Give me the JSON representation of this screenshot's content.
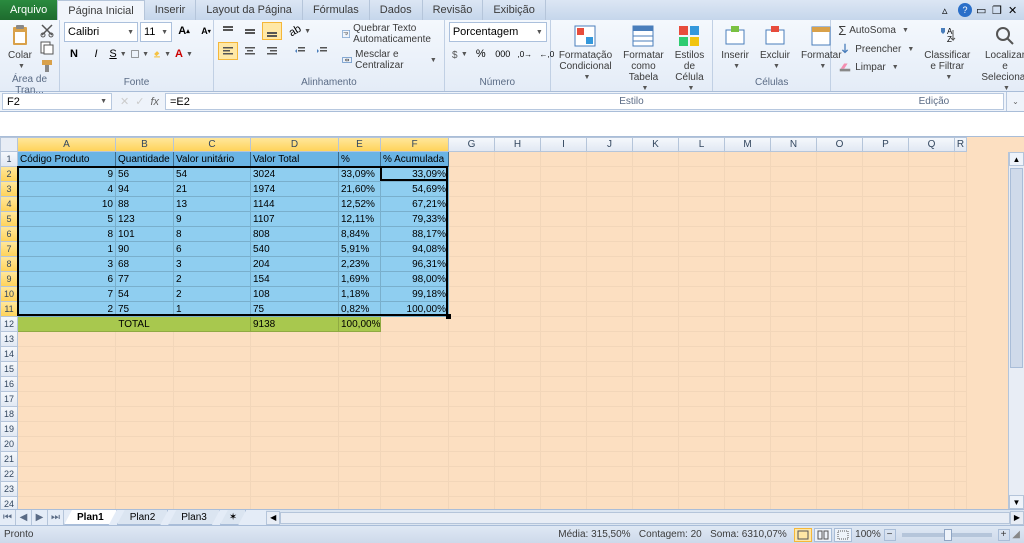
{
  "tabs": {
    "file": "Arquivo",
    "home": "Página Inicial",
    "insert": "Inserir",
    "layout": "Layout da Página",
    "formulas": "Fórmulas",
    "data": "Dados",
    "review": "Revisão",
    "view": "Exibição"
  },
  "ribbon": {
    "clipboard": {
      "paste": "Colar",
      "group": "Área de Tran..."
    },
    "font": {
      "name": "Calibri",
      "size": "11",
      "group": "Fonte"
    },
    "alignment": {
      "wrap": "Quebrar Texto Automaticamente",
      "merge": "Mesclar e Centralizar",
      "group": "Alinhamento"
    },
    "number": {
      "format": "Porcentagem",
      "group": "Número"
    },
    "styles": {
      "conditional": "Formatação Condicional",
      "table": "Formatar como Tabela",
      "cell": "Estilos de Célula",
      "group": "Estilo"
    },
    "cells": {
      "insert": "Inserir",
      "delete": "Excluir",
      "format": "Formatar",
      "group": "Células"
    },
    "editing": {
      "sum": "AutoSoma",
      "fill": "Preencher",
      "clear": "Limpar",
      "sort": "Classificar e Filtrar",
      "find": "Localizar e Selecionar",
      "group": "Edição"
    }
  },
  "namebox": "F2",
  "formula": "=E2",
  "columns": {
    "widths": [
      98,
      58,
      77,
      88,
      42,
      68,
      46,
      46,
      46,
      46,
      46,
      46,
      46,
      46,
      46,
      46,
      46,
      12
    ],
    "labels": [
      "A",
      "B",
      "C",
      "D",
      "E",
      "F",
      "G",
      "H",
      "I",
      "J",
      "K",
      "L",
      "M",
      "N",
      "O",
      "P",
      "Q",
      "R"
    ],
    "selected": [
      0,
      1,
      2,
      3,
      4,
      5
    ]
  },
  "headers": [
    "Código Produto",
    "Quantidade",
    "Valor unitário",
    "Valor Total",
    "%",
    "% Acumulada"
  ],
  "data_rows": [
    [
      "9",
      "56",
      "54",
      "3024",
      "33,09%",
      "33,09%"
    ],
    [
      "4",
      "94",
      "21",
      "1974",
      "21,60%",
      "54,69%"
    ],
    [
      "10",
      "88",
      "13",
      "1144",
      "12,52%",
      "67,21%"
    ],
    [
      "5",
      "123",
      "9",
      "1107",
      "12,11%",
      "79,33%"
    ],
    [
      "8",
      "101",
      "8",
      "808",
      "8,84%",
      "88,17%"
    ],
    [
      "1",
      "90",
      "6",
      "540",
      "5,91%",
      "94,08%"
    ],
    [
      "3",
      "68",
      "3",
      "204",
      "2,23%",
      "96,31%"
    ],
    [
      "6",
      "77",
      "2",
      "154",
      "1,69%",
      "98,00%"
    ],
    [
      "7",
      "54",
      "2",
      "108",
      "1,18%",
      "99,18%"
    ],
    [
      "2",
      "75",
      "1",
      "75",
      "0,82%",
      "100,00%"
    ]
  ],
  "total_row": {
    "label": "TOTAL",
    "total": "9138",
    "pct": "100,00%"
  },
  "row_aligns": [
    "r",
    "l",
    "l",
    "l",
    "l",
    "r"
  ],
  "empty_row_count": 12,
  "selected_rows": [
    2,
    3,
    4,
    5,
    6,
    7,
    8,
    9,
    10,
    11
  ],
  "active_cell": "F2",
  "sheets": {
    "s1": "Plan1",
    "s2": "Plan2",
    "s3": "Plan3"
  },
  "status": {
    "ready": "Pronto",
    "avg_label": "Média:",
    "avg": "315,50%",
    "count_label": "Contagem:",
    "count": "20",
    "sum_label": "Soma:",
    "sum": "6310,07%",
    "zoom": "100%"
  },
  "colors": {
    "header_fill": "#6ab4e4",
    "data_fill": "#8fcef0",
    "total_fill": "#a8c84e",
    "canvas_fill": "#fcdfc1"
  }
}
